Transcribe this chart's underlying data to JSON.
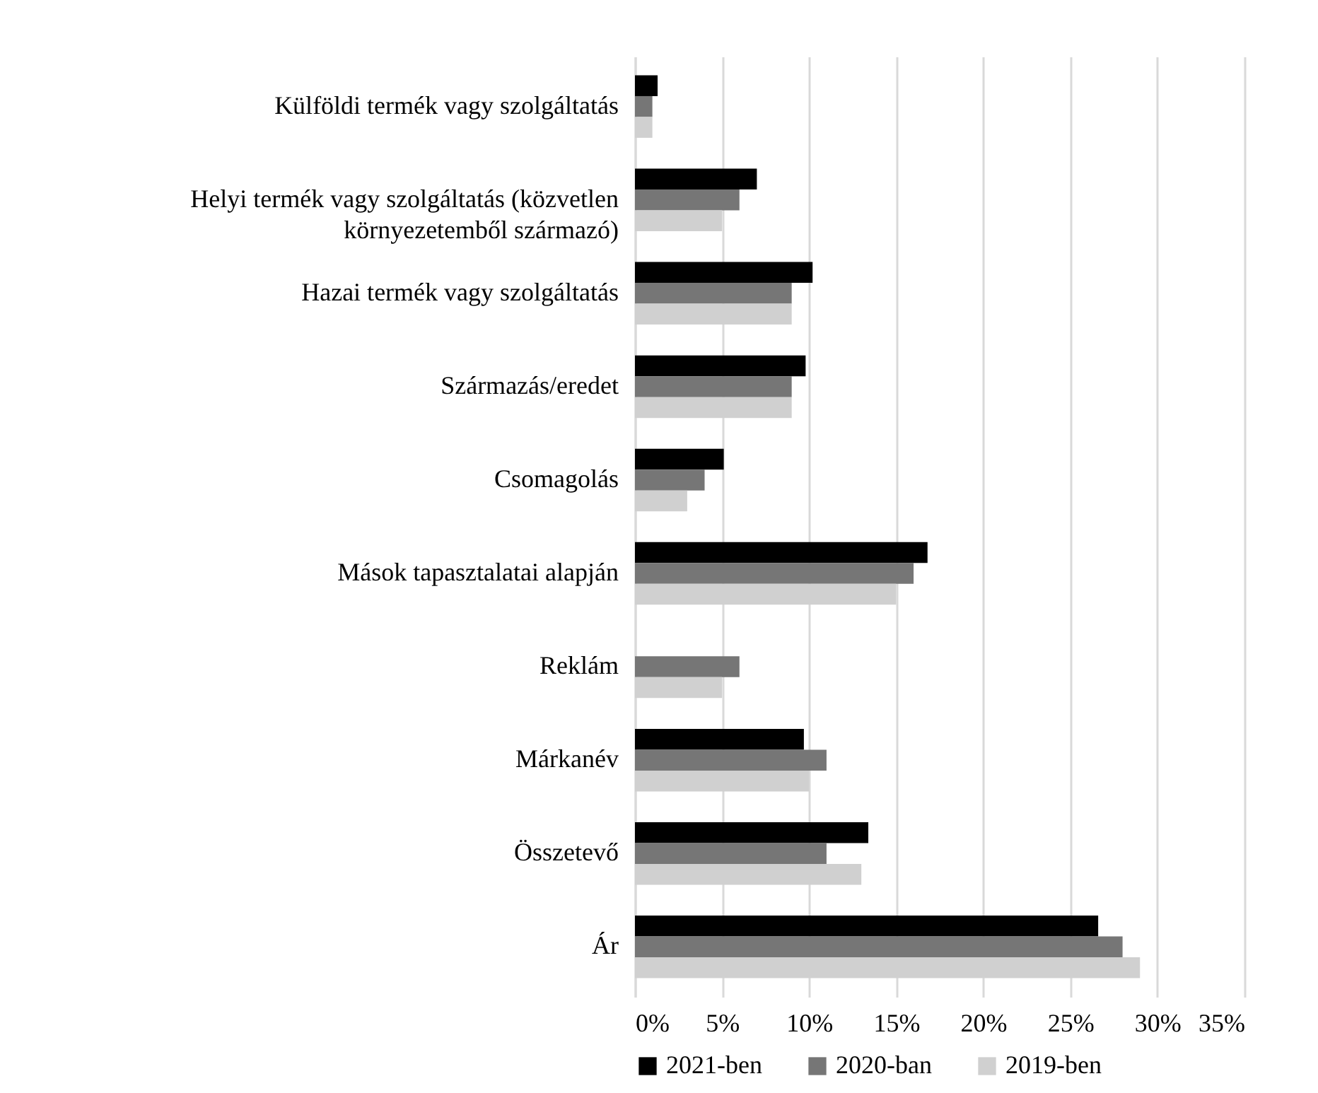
{
  "chart_data": {
    "type": "bar",
    "orientation": "horizontal",
    "categories": [
      "Külföldi termék vagy szolgáltatás",
      "Helyi termék vagy szolgáltatás (közvetlen környezetemből származó)",
      "Hazai termék vagy szolgáltatás",
      "Származás/eredet",
      "Csomagolás",
      "Mások tapasztalatai alapján",
      "Reklám",
      "Márkanév",
      "Összetevő",
      "Ár"
    ],
    "series": [
      {
        "name": "2021-ben",
        "color": "#000000",
        "values": [
          1.3,
          7,
          10.2,
          9.8,
          5.1,
          16.8,
          null,
          9.7,
          13.4,
          26.6
        ]
      },
      {
        "name": "2020-ban",
        "color": "#767676",
        "values": [
          1,
          6,
          9,
          9,
          4,
          16,
          6,
          11,
          11,
          28
        ]
      },
      {
        "name": "2019-ben",
        "color": "#d0d0d0",
        "values": [
          1,
          5,
          9,
          9,
          3,
          15,
          5,
          10,
          13,
          29
        ]
      }
    ],
    "xlim": [
      0,
      35
    ],
    "xticks": [
      {
        "value": 0,
        "label": "0%"
      },
      {
        "value": 5,
        "label": "5%"
      },
      {
        "value": 10,
        "label": "10%"
      },
      {
        "value": 15,
        "label": "15%"
      },
      {
        "value": 20,
        "label": "20%"
      },
      {
        "value": 25,
        "label": "25%"
      },
      {
        "value": 30,
        "label": "30%"
      },
      {
        "value": 35,
        "label": "35%"
      }
    ],
    "grid": "x",
    "legend": "bottom"
  }
}
